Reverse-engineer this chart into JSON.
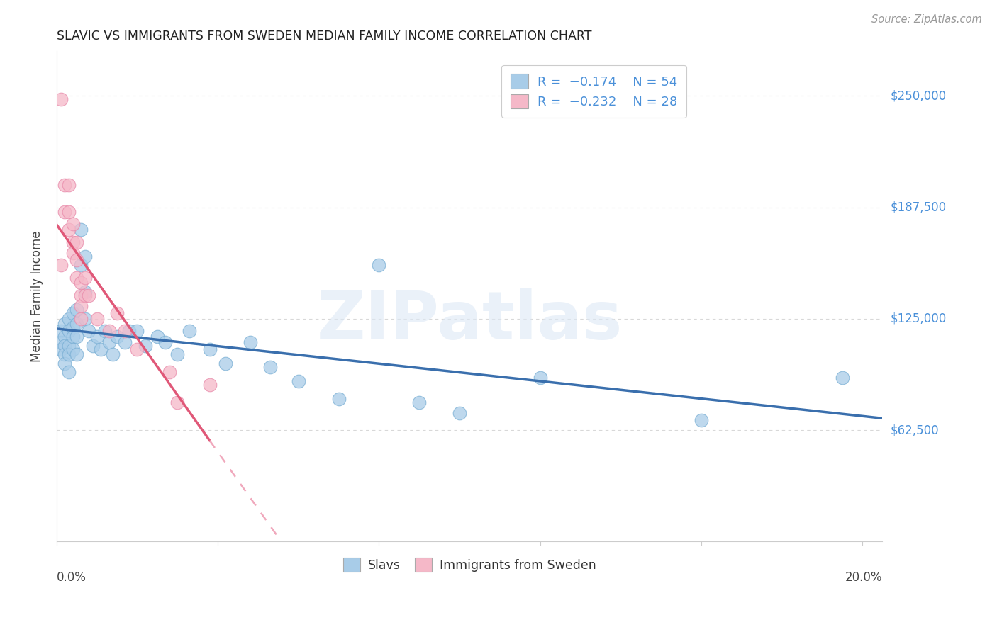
{
  "title": "SLAVIC VS IMMIGRANTS FROM SWEDEN MEDIAN FAMILY INCOME CORRELATION CHART",
  "source": "Source: ZipAtlas.com",
  "ylabel": "Median Family Income",
  "watermark": "ZIPatlas",
  "y_tick_labels": [
    "$62,500",
    "$125,000",
    "$187,500",
    "$250,000"
  ],
  "y_tick_values": [
    62500,
    125000,
    187500,
    250000
  ],
  "y_min": 0,
  "y_max": 275000,
  "x_min": 0.0,
  "x_max": 0.205,
  "legend_blue_r": "-0.174",
  "legend_blue_n": "54",
  "legend_pink_r": "-0.232",
  "legend_pink_n": "28",
  "legend_label_blue": "Slavs",
  "legend_label_pink": "Immigrants from Sweden",
  "blue_color": "#a8cce8",
  "pink_color": "#f5b8c8",
  "blue_edge_color": "#7aafd4",
  "pink_edge_color": "#e88aaa",
  "blue_line_color": "#3a6fad",
  "pink_line_color": "#e05878",
  "pink_dash_color": "#f0a8bc",
  "background_color": "#ffffff",
  "grid_color": "#d8d8d8",
  "slavs_x": [
    0.001,
    0.001,
    0.001,
    0.002,
    0.002,
    0.002,
    0.002,
    0.002,
    0.003,
    0.003,
    0.003,
    0.003,
    0.003,
    0.004,
    0.004,
    0.004,
    0.004,
    0.005,
    0.005,
    0.005,
    0.005,
    0.006,
    0.006,
    0.007,
    0.007,
    0.007,
    0.008,
    0.009,
    0.01,
    0.011,
    0.012,
    0.013,
    0.014,
    0.015,
    0.017,
    0.018,
    0.02,
    0.022,
    0.025,
    0.027,
    0.03,
    0.033,
    0.038,
    0.042,
    0.048,
    0.053,
    0.06,
    0.07,
    0.08,
    0.09,
    0.1,
    0.12,
    0.16,
    0.195
  ],
  "slavs_y": [
    118000,
    112000,
    108000,
    122000,
    115000,
    110000,
    105000,
    100000,
    125000,
    118000,
    110000,
    105000,
    95000,
    128000,
    120000,
    115000,
    108000,
    130000,
    122000,
    115000,
    105000,
    175000,
    155000,
    160000,
    140000,
    125000,
    118000,
    110000,
    115000,
    108000,
    118000,
    112000,
    105000,
    115000,
    112000,
    118000,
    118000,
    110000,
    115000,
    112000,
    105000,
    118000,
    108000,
    100000,
    112000,
    98000,
    90000,
    80000,
    155000,
    78000,
    72000,
    92000,
    68000,
    92000
  ],
  "sweden_x": [
    0.001,
    0.001,
    0.002,
    0.002,
    0.003,
    0.003,
    0.003,
    0.004,
    0.004,
    0.004,
    0.005,
    0.005,
    0.005,
    0.006,
    0.006,
    0.006,
    0.006,
    0.007,
    0.007,
    0.008,
    0.01,
    0.013,
    0.015,
    0.017,
    0.02,
    0.028,
    0.038,
    0.03
  ],
  "sweden_y": [
    248000,
    155000,
    200000,
    185000,
    200000,
    185000,
    175000,
    178000,
    168000,
    162000,
    158000,
    148000,
    168000,
    145000,
    138000,
    132000,
    125000,
    148000,
    138000,
    138000,
    125000,
    118000,
    128000,
    118000,
    108000,
    95000,
    88000,
    78000
  ]
}
